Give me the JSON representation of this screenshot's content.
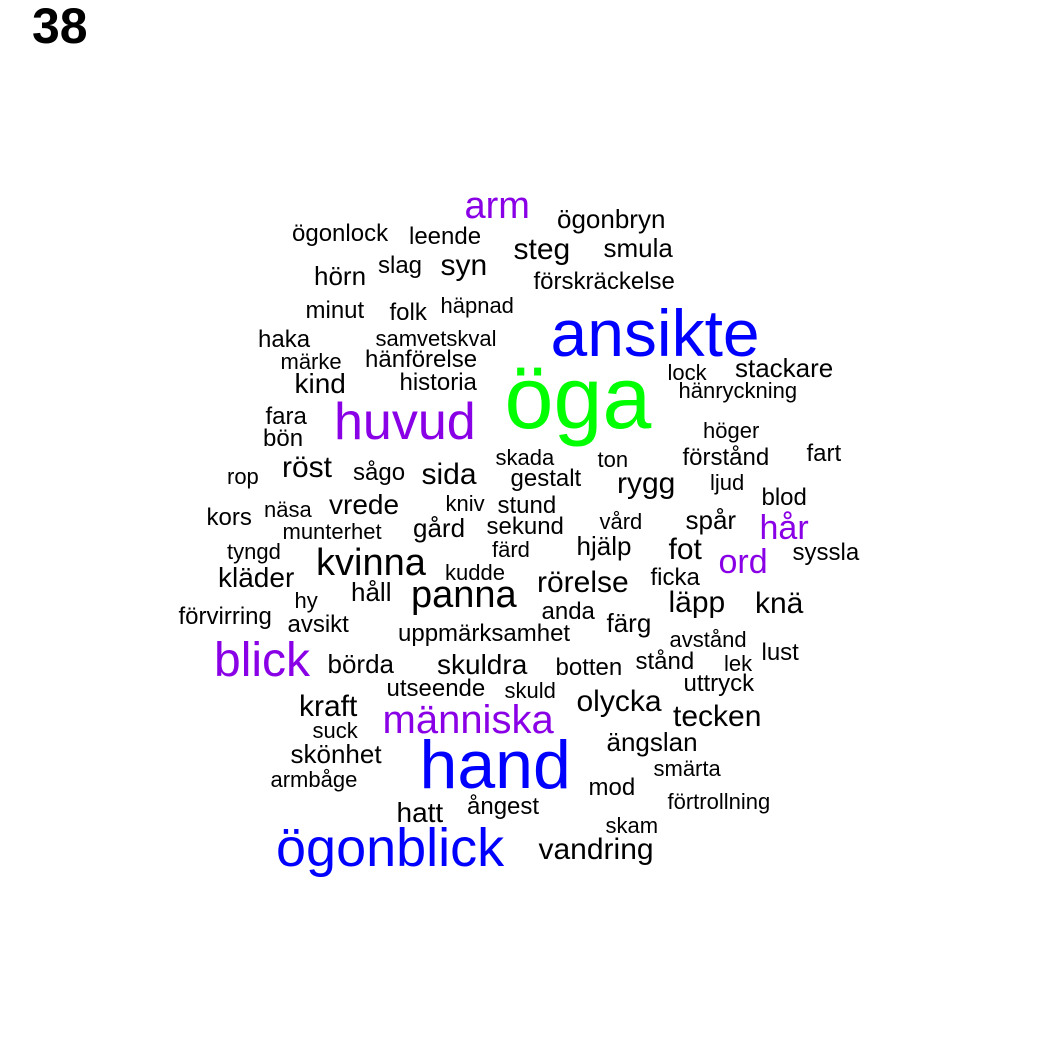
{
  "label": "38",
  "colors": {
    "black": "#000000",
    "purple": "#8a00e6",
    "blue": "#0000ff",
    "green": "#00ff00"
  },
  "words": [
    {
      "text": "öga",
      "color": "green"
    },
    {
      "text": "ansikte",
      "color": "blue"
    },
    {
      "text": "hand",
      "color": "blue"
    },
    {
      "text": "ögonblick",
      "color": "blue"
    },
    {
      "text": "huvud",
      "color": "purple"
    },
    {
      "text": "blick",
      "color": "purple"
    },
    {
      "text": "människa",
      "color": "purple"
    },
    {
      "text": "arm",
      "color": "purple"
    },
    {
      "text": "hår",
      "color": "purple"
    },
    {
      "text": "ord",
      "color": "purple"
    },
    {
      "text": "ögonbryn",
      "color": "black"
    },
    {
      "text": "ögonlock",
      "color": "black"
    },
    {
      "text": "leende",
      "color": "black"
    },
    {
      "text": "steg",
      "color": "black"
    },
    {
      "text": "smula",
      "color": "black"
    },
    {
      "text": "hörn",
      "color": "black"
    },
    {
      "text": "slag",
      "color": "black"
    },
    {
      "text": "syn",
      "color": "black"
    },
    {
      "text": "förskräckelse",
      "color": "black"
    },
    {
      "text": "minut",
      "color": "black"
    },
    {
      "text": "folk",
      "color": "black"
    },
    {
      "text": "häpnad",
      "color": "black"
    },
    {
      "text": "haka",
      "color": "black"
    },
    {
      "text": "samvetskval",
      "color": "black"
    },
    {
      "text": "märke",
      "color": "black"
    },
    {
      "text": "hänförelse",
      "color": "black"
    },
    {
      "text": "stackare",
      "color": "black"
    },
    {
      "text": "lock",
      "color": "black"
    },
    {
      "text": "kind",
      "color": "black"
    },
    {
      "text": "historia",
      "color": "black"
    },
    {
      "text": "hänryckning",
      "color": "black"
    },
    {
      "text": "fara",
      "color": "black"
    },
    {
      "text": "bön",
      "color": "black"
    },
    {
      "text": "höger",
      "color": "black"
    },
    {
      "text": "fart",
      "color": "black"
    },
    {
      "text": "förstånd",
      "color": "black"
    },
    {
      "text": "skada",
      "color": "black"
    },
    {
      "text": "ton",
      "color": "black"
    },
    {
      "text": "röst",
      "color": "black"
    },
    {
      "text": "rop",
      "color": "black"
    },
    {
      "text": "sågo",
      "color": "black"
    },
    {
      "text": "sida",
      "color": "black"
    },
    {
      "text": "gestalt",
      "color": "black"
    },
    {
      "text": "rygg",
      "color": "black"
    },
    {
      "text": "ljud",
      "color": "black"
    },
    {
      "text": "blod",
      "color": "black"
    },
    {
      "text": "kors",
      "color": "black"
    },
    {
      "text": "näsa",
      "color": "black"
    },
    {
      "text": "vrede",
      "color": "black"
    },
    {
      "text": "kniv",
      "color": "black"
    },
    {
      "text": "stund",
      "color": "black"
    },
    {
      "text": "spår",
      "color": "black"
    },
    {
      "text": "munterhet",
      "color": "black"
    },
    {
      "text": "gård",
      "color": "black"
    },
    {
      "text": "sekund",
      "color": "black"
    },
    {
      "text": "vård",
      "color": "black"
    },
    {
      "text": "tyngd",
      "color": "black"
    },
    {
      "text": "kvinna",
      "color": "black"
    },
    {
      "text": "färd",
      "color": "black"
    },
    {
      "text": "hjälp",
      "color": "black"
    },
    {
      "text": "fot",
      "color": "black"
    },
    {
      "text": "syssla",
      "color": "black"
    },
    {
      "text": "kläder",
      "color": "black"
    },
    {
      "text": "kudde",
      "color": "black"
    },
    {
      "text": "rörelse",
      "color": "black"
    },
    {
      "text": "ficka",
      "color": "black"
    },
    {
      "text": "håll",
      "color": "black"
    },
    {
      "text": "hy",
      "color": "black"
    },
    {
      "text": "panna",
      "color": "black"
    },
    {
      "text": "läpp",
      "color": "black"
    },
    {
      "text": "knä",
      "color": "black"
    },
    {
      "text": "förvirring",
      "color": "black"
    },
    {
      "text": "avsikt",
      "color": "black"
    },
    {
      "text": "anda",
      "color": "black"
    },
    {
      "text": "färg",
      "color": "black"
    },
    {
      "text": "uppmärksamhet",
      "color": "black"
    },
    {
      "text": "avstånd",
      "color": "black"
    },
    {
      "text": "lust",
      "color": "black"
    },
    {
      "text": "börda",
      "color": "black"
    },
    {
      "text": "skuldra",
      "color": "black"
    },
    {
      "text": "botten",
      "color": "black"
    },
    {
      "text": "stånd",
      "color": "black"
    },
    {
      "text": "lek",
      "color": "black"
    },
    {
      "text": "utseende",
      "color": "black"
    },
    {
      "text": "skuld",
      "color": "black"
    },
    {
      "text": "uttryck",
      "color": "black"
    },
    {
      "text": "kraft",
      "color": "black"
    },
    {
      "text": "olycka",
      "color": "black"
    },
    {
      "text": "tecken",
      "color": "black"
    },
    {
      "text": "suck",
      "color": "black"
    },
    {
      "text": "ängslan",
      "color": "black"
    },
    {
      "text": "skönhet",
      "color": "black"
    },
    {
      "text": "smärta",
      "color": "black"
    },
    {
      "text": "armbåge",
      "color": "black"
    },
    {
      "text": "mod",
      "color": "black"
    },
    {
      "text": "ångest",
      "color": "black"
    },
    {
      "text": "förtrollning",
      "color": "black"
    },
    {
      "text": "hatt",
      "color": "black"
    },
    {
      "text": "skam",
      "color": "black"
    },
    {
      "text": "vandring",
      "color": "black"
    }
  ]
}
